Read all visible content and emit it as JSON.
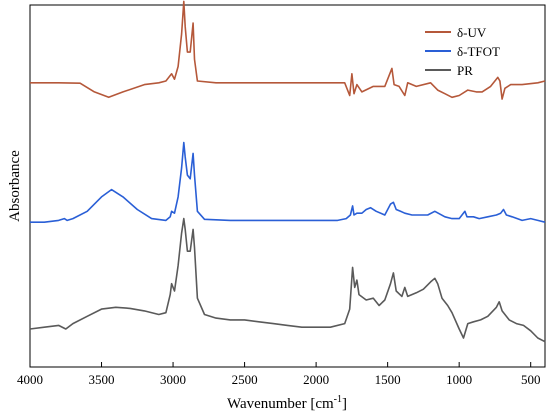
{
  "chart_data": {
    "type": "line",
    "xlabel": "Wavenumber [cm",
    "xlabel_sup": "-1",
    "xlabel_end": "]",
    "ylabel": "Absorbance",
    "xlim": [
      4000,
      400
    ],
    "ylim": [
      0,
      10
    ],
    "x_ticks": [
      4000,
      3500,
      3000,
      2500,
      2000,
      1500,
      1000,
      500
    ],
    "x_tick_labels": [
      "4000",
      "3500",
      "3000",
      "2500",
      "2000",
      "1500",
      "1000",
      "500"
    ],
    "grid": false,
    "legend_position": "top-right",
    "series": [
      {
        "name": "δ-UV",
        "color": "#b5583a",
        "points": [
          [
            4000,
            7.85
          ],
          [
            3800,
            7.85
          ],
          [
            3650,
            7.84
          ],
          [
            3550,
            7.6
          ],
          [
            3450,
            7.45
          ],
          [
            3350,
            7.6
          ],
          [
            3200,
            7.8
          ],
          [
            3100,
            7.85
          ],
          [
            3050,
            7.9
          ],
          [
            3010,
            8.1
          ],
          [
            2990,
            7.95
          ],
          [
            2965,
            8.3
          ],
          [
            2940,
            9.2
          ],
          [
            2925,
            10.1
          ],
          [
            2915,
            9.4
          ],
          [
            2900,
            8.7
          ],
          [
            2880,
            8.7
          ],
          [
            2860,
            9.5
          ],
          [
            2850,
            8.5
          ],
          [
            2830,
            7.9
          ],
          [
            2700,
            7.85
          ],
          [
            2000,
            7.85
          ],
          [
            1800,
            7.85
          ],
          [
            1765,
            7.5
          ],
          [
            1750,
            8.1
          ],
          [
            1735,
            7.55
          ],
          [
            1715,
            7.8
          ],
          [
            1680,
            7.6
          ],
          [
            1600,
            7.75
          ],
          [
            1520,
            7.75
          ],
          [
            1470,
            8.25
          ],
          [
            1455,
            7.8
          ],
          [
            1420,
            7.75
          ],
          [
            1380,
            7.5
          ],
          [
            1360,
            7.85
          ],
          [
            1300,
            7.75
          ],
          [
            1200,
            7.85
          ],
          [
            1150,
            7.65
          ],
          [
            1100,
            7.55
          ],
          [
            1050,
            7.45
          ],
          [
            1000,
            7.5
          ],
          [
            940,
            7.65
          ],
          [
            880,
            7.6
          ],
          [
            840,
            7.6
          ],
          [
            780,
            7.75
          ],
          [
            730,
            8.0
          ],
          [
            715,
            7.9
          ],
          [
            700,
            7.4
          ],
          [
            680,
            7.7
          ],
          [
            640,
            7.8
          ],
          [
            560,
            7.8
          ],
          [
            450,
            7.85
          ],
          [
            400,
            7.9
          ]
        ]
      },
      {
        "name": "δ-TFOT",
        "color": "#2a5fd6",
        "points": [
          [
            4000,
            4.0
          ],
          [
            3900,
            4.0
          ],
          [
            3800,
            4.05
          ],
          [
            3760,
            4.1
          ],
          [
            3740,
            4.05
          ],
          [
            3700,
            4.1
          ],
          [
            3600,
            4.3
          ],
          [
            3500,
            4.7
          ],
          [
            3430,
            4.9
          ],
          [
            3350,
            4.7
          ],
          [
            3250,
            4.35
          ],
          [
            3150,
            4.1
          ],
          [
            3050,
            4.05
          ],
          [
            3020,
            4.15
          ],
          [
            3010,
            4.3
          ],
          [
            2990,
            4.25
          ],
          [
            2965,
            4.7
          ],
          [
            2940,
            5.5
          ],
          [
            2925,
            6.2
          ],
          [
            2915,
            5.8
          ],
          [
            2900,
            5.3
          ],
          [
            2880,
            5.2
          ],
          [
            2860,
            5.9
          ],
          [
            2850,
            5.3
          ],
          [
            2830,
            4.3
          ],
          [
            2780,
            4.08
          ],
          [
            2600,
            4.05
          ],
          [
            2400,
            4.05
          ],
          [
            2200,
            4.05
          ],
          [
            2000,
            4.05
          ],
          [
            1850,
            4.05
          ],
          [
            1790,
            4.1
          ],
          [
            1760,
            4.2
          ],
          [
            1745,
            4.45
          ],
          [
            1735,
            4.2
          ],
          [
            1715,
            4.25
          ],
          [
            1680,
            4.25
          ],
          [
            1650,
            4.35
          ],
          [
            1620,
            4.4
          ],
          [
            1580,
            4.3
          ],
          [
            1520,
            4.2
          ],
          [
            1480,
            4.5
          ],
          [
            1460,
            4.55
          ],
          [
            1440,
            4.35
          ],
          [
            1410,
            4.3
          ],
          [
            1380,
            4.25
          ],
          [
            1330,
            4.2
          ],
          [
            1280,
            4.2
          ],
          [
            1220,
            4.2
          ],
          [
            1170,
            4.3
          ],
          [
            1100,
            4.15
          ],
          [
            1050,
            4.1
          ],
          [
            1000,
            4.1
          ],
          [
            960,
            4.3
          ],
          [
            945,
            4.15
          ],
          [
            900,
            4.15
          ],
          [
            860,
            4.1
          ],
          [
            800,
            4.15
          ],
          [
            740,
            4.2
          ],
          [
            710,
            4.25
          ],
          [
            690,
            4.35
          ],
          [
            670,
            4.2
          ],
          [
            630,
            4.15
          ],
          [
            560,
            4.05
          ],
          [
            500,
            4.1
          ],
          [
            450,
            4.05
          ],
          [
            400,
            4.0
          ]
        ]
      },
      {
        "name": "PR",
        "color": "#5a5a5a",
        "points": [
          [
            4000,
            1.05
          ],
          [
            3900,
            1.1
          ],
          [
            3800,
            1.15
          ],
          [
            3750,
            1.05
          ],
          [
            3700,
            1.2
          ],
          [
            3600,
            1.4
          ],
          [
            3500,
            1.6
          ],
          [
            3400,
            1.65
          ],
          [
            3300,
            1.62
          ],
          [
            3200,
            1.55
          ],
          [
            3100,
            1.45
          ],
          [
            3050,
            1.5
          ],
          [
            3020,
            2.0
          ],
          [
            3010,
            2.3
          ],
          [
            2990,
            2.1
          ],
          [
            2965,
            2.8
          ],
          [
            2940,
            3.7
          ],
          [
            2925,
            4.1
          ],
          [
            2915,
            3.8
          ],
          [
            2900,
            3.2
          ],
          [
            2880,
            3.2
          ],
          [
            2860,
            3.8
          ],
          [
            2850,
            3.3
          ],
          [
            2830,
            1.9
          ],
          [
            2780,
            1.45
          ],
          [
            2700,
            1.35
          ],
          [
            2600,
            1.3
          ],
          [
            2500,
            1.3
          ],
          [
            2400,
            1.25
          ],
          [
            2300,
            1.2
          ],
          [
            2200,
            1.15
          ],
          [
            2100,
            1.1
          ],
          [
            2000,
            1.1
          ],
          [
            1900,
            1.1
          ],
          [
            1800,
            1.2
          ],
          [
            1765,
            1.6
          ],
          [
            1745,
            2.75
          ],
          [
            1730,
            2.2
          ],
          [
            1715,
            2.4
          ],
          [
            1700,
            2.0
          ],
          [
            1650,
            1.85
          ],
          [
            1600,
            1.9
          ],
          [
            1560,
            1.7
          ],
          [
            1520,
            1.85
          ],
          [
            1480,
            2.3
          ],
          [
            1460,
            2.6
          ],
          [
            1440,
            2.1
          ],
          [
            1400,
            1.95
          ],
          [
            1380,
            2.2
          ],
          [
            1360,
            1.95
          ],
          [
            1300,
            2.05
          ],
          [
            1250,
            2.15
          ],
          [
            1200,
            2.35
          ],
          [
            1170,
            2.45
          ],
          [
            1150,
            2.3
          ],
          [
            1120,
            1.9
          ],
          [
            1080,
            1.7
          ],
          [
            1050,
            1.5
          ],
          [
            1000,
            1.05
          ],
          [
            970,
            0.8
          ],
          [
            940,
            1.2
          ],
          [
            900,
            1.25
          ],
          [
            850,
            1.3
          ],
          [
            800,
            1.4
          ],
          [
            740,
            1.65
          ],
          [
            720,
            1.8
          ],
          [
            700,
            1.55
          ],
          [
            650,
            1.3
          ],
          [
            600,
            1.2
          ],
          [
            550,
            1.15
          ],
          [
            500,
            1.0
          ],
          [
            450,
            0.8
          ],
          [
            400,
            0.7
          ]
        ]
      }
    ]
  }
}
